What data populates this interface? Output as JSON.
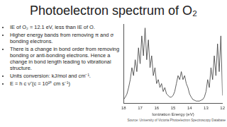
{
  "title": "Photoelectron spectrum of O₂",
  "bullets": [
    "IE of O₂ = 12.1 eV, less than IE of O.",
    "Higher energy bands from removing π and σ bonding electrons.",
    "There is a change in bond order from removing bonding or anti-bonding electrons. Hence a change in bond length leading to vibrational structure.",
    "Units conversion: kJ/mol and cm⁻¹.",
    "E = h c ν̃ (c = 10¹⁰ cm s⁻¹)"
  ],
  "source": "Source: University of Victoria Photoelectron Spectroscopy Database",
  "chart_data": {
    "type": "line",
    "x_label": "Ionization Energy (eV)",
    "x": [
      18.0,
      17.9,
      17.8,
      17.7,
      17.6,
      17.5,
      17.4,
      17.3,
      17.2,
      17.1,
      17.0,
      16.9,
      16.8,
      16.7,
      16.6,
      16.5,
      16.4,
      16.3,
      16.2,
      16.1,
      16.0,
      15.9,
      15.8,
      15.7,
      15.6,
      15.5,
      15.4,
      15.3,
      15.2,
      15.1,
      15.0,
      14.9,
      14.8,
      14.7,
      14.6,
      14.5,
      14.4,
      14.3,
      14.2,
      14.1,
      14.0,
      13.9,
      13.8,
      13.7,
      13.6,
      13.5,
      13.4,
      13.3,
      13.2,
      13.1,
      13.0,
      12.9,
      12.8,
      12.7,
      12.6,
      12.5,
      12.4,
      12.3,
      12.2,
      12.1,
      12.0
    ],
    "values": [
      0.05,
      0.08,
      0.12,
      0.2,
      0.3,
      0.45,
      0.35,
      0.55,
      0.4,
      0.7,
      0.5,
      0.85,
      0.6,
      0.95,
      0.55,
      0.8,
      0.45,
      0.6,
      0.35,
      0.45,
      0.25,
      0.3,
      0.2,
      0.25,
      0.15,
      0.2,
      0.12,
      0.1,
      0.08,
      0.08,
      0.1,
      0.15,
      0.25,
      0.35,
      0.3,
      0.4,
      0.3,
      0.35,
      0.25,
      0.2,
      0.12,
      0.08,
      0.05,
      0.04,
      0.03,
      0.03,
      0.03,
      0.04,
      0.05,
      0.08,
      0.15,
      0.3,
      0.2,
      0.45,
      0.3,
      0.6,
      0.35,
      0.75,
      0.4,
      0.85,
      0.1
    ],
    "color": "#3a3a3a",
    "xlim": [
      18,
      12
    ],
    "xticks": [
      18,
      17,
      16,
      15,
      14,
      13,
      12
    ],
    "ylim": [
      0,
      1
    ],
    "grid": false,
    "tick_labels": "x"
  }
}
